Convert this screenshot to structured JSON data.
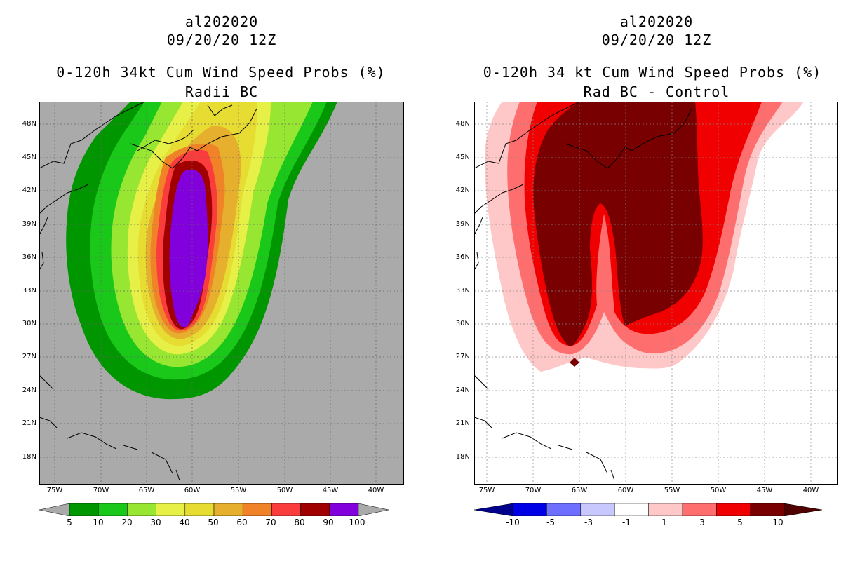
{
  "left_panel": {
    "storm_id": "al202020",
    "datetime": "09/20/20 12Z",
    "title": "0-120h 34kt Cum Wind Speed Probs (%)",
    "subtitle": "Radii BC",
    "background": "#aaaaaa",
    "colorbar": {
      "labels": [
        "5",
        "10",
        "20",
        "30",
        "40",
        "50",
        "60",
        "70",
        "80",
        "90",
        "100"
      ],
      "colors": [
        "#009600",
        "#19c819",
        "#96e632",
        "#e6f046",
        "#e6dc32",
        "#e6af2d",
        "#f08228",
        "#fa3c3c",
        "#a00000",
        "#8200dc"
      ]
    }
  },
  "right_panel": {
    "storm_id": "al202020",
    "datetime": "09/20/20 12Z",
    "title": "0-120h 34 kt Cum Wind Speed Probs (%)",
    "subtitle": "Rad BC - Control",
    "background": "#ffffff",
    "colorbar": {
      "labels": [
        "-10",
        "-5",
        "-3",
        "-1",
        "1",
        "3",
        "5",
        "10"
      ],
      "colors": [
        "#0000e6",
        "#6e6eff",
        "#c8c8ff",
        "#ffffff",
        "#ffc8c8",
        "#ff6e6e",
        "#f00000",
        "#780000"
      ]
    }
  },
  "axes": {
    "lat_labels": [
      "48N",
      "45N",
      "42N",
      "39N",
      "36N",
      "33N",
      "30N",
      "27N",
      "24N",
      "21N",
      "18N"
    ],
    "lon_labels": [
      "75W",
      "70W",
      "65W",
      "60W",
      "55W",
      "50W",
      "45W",
      "40W"
    ]
  }
}
